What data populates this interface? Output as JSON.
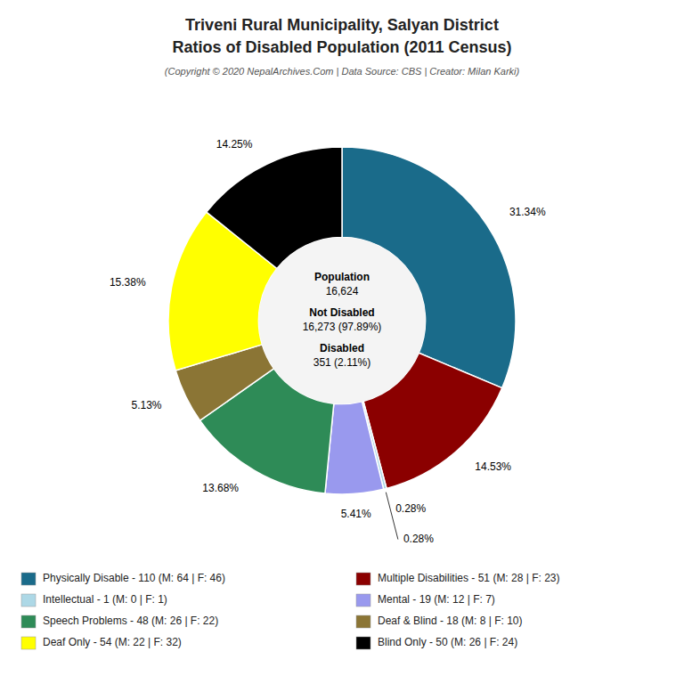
{
  "chart_data": {
    "type": "donut",
    "title": [
      "Triveni Rural Municipality, Salyan District",
      "Ratios of Disabled Population (2011 Census)"
    ],
    "subtitle": "(Copyright © 2020 NepalArchives.Com | Data Source: CBS | Creator: Milan Karki)",
    "categories": [
      "Physically Disable - 110 (M: 64 | F: 46)",
      "Multiple Disabilities - 51 (M: 28 | F: 23)",
      "Intellectual - 1 (M: 0 | F: 1)",
      "Mental - 19 (M: 12 | F: 7)",
      "Speech Problems - 48 (M: 26 | F: 22)",
      "Deaf & Blind - 18 (M: 8 | F: 10)",
      "Deaf Only - 54 (M: 22 | F: 32)",
      "Blind Only - 50 (M: 26 | F: 24)"
    ],
    "values": [
      31.34,
      14.53,
      0.28,
      5.41,
      13.68,
      5.13,
      15.38,
      14.25
    ],
    "value_labels": [
      "31.34%",
      "14.53%",
      "0.28%",
      "5.41%",
      "13.68%",
      "5.13%",
      "15.38%",
      "14.25%"
    ],
    "colors": [
      "#1a6b8a",
      "#8b0000",
      "#add8e6",
      "#9999ee",
      "#2e8b57",
      "#8b7535",
      "#ffff00",
      "#000000"
    ],
    "data_labels": true,
    "legend": "bottom",
    "annotations": [
      "0.28%"
    ],
    "center_text": [
      [
        "Population",
        "16,624"
      ],
      [
        "Not Disabled",
        "16,273 (97.89%)"
      ],
      [
        "Disabled",
        "351 (2.11%)"
      ]
    ]
  }
}
